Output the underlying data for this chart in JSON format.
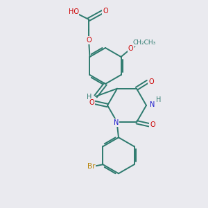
{
  "bg_color": "#eaeaef",
  "bond_color": "#2d7a6e",
  "atom_colors": {
    "O": "#cc0000",
    "N": "#1a1acc",
    "Br": "#b8860b",
    "H": "#2d7a6e",
    "C": "#2d7a6e"
  },
  "lw": 1.4,
  "fs": 7.0
}
